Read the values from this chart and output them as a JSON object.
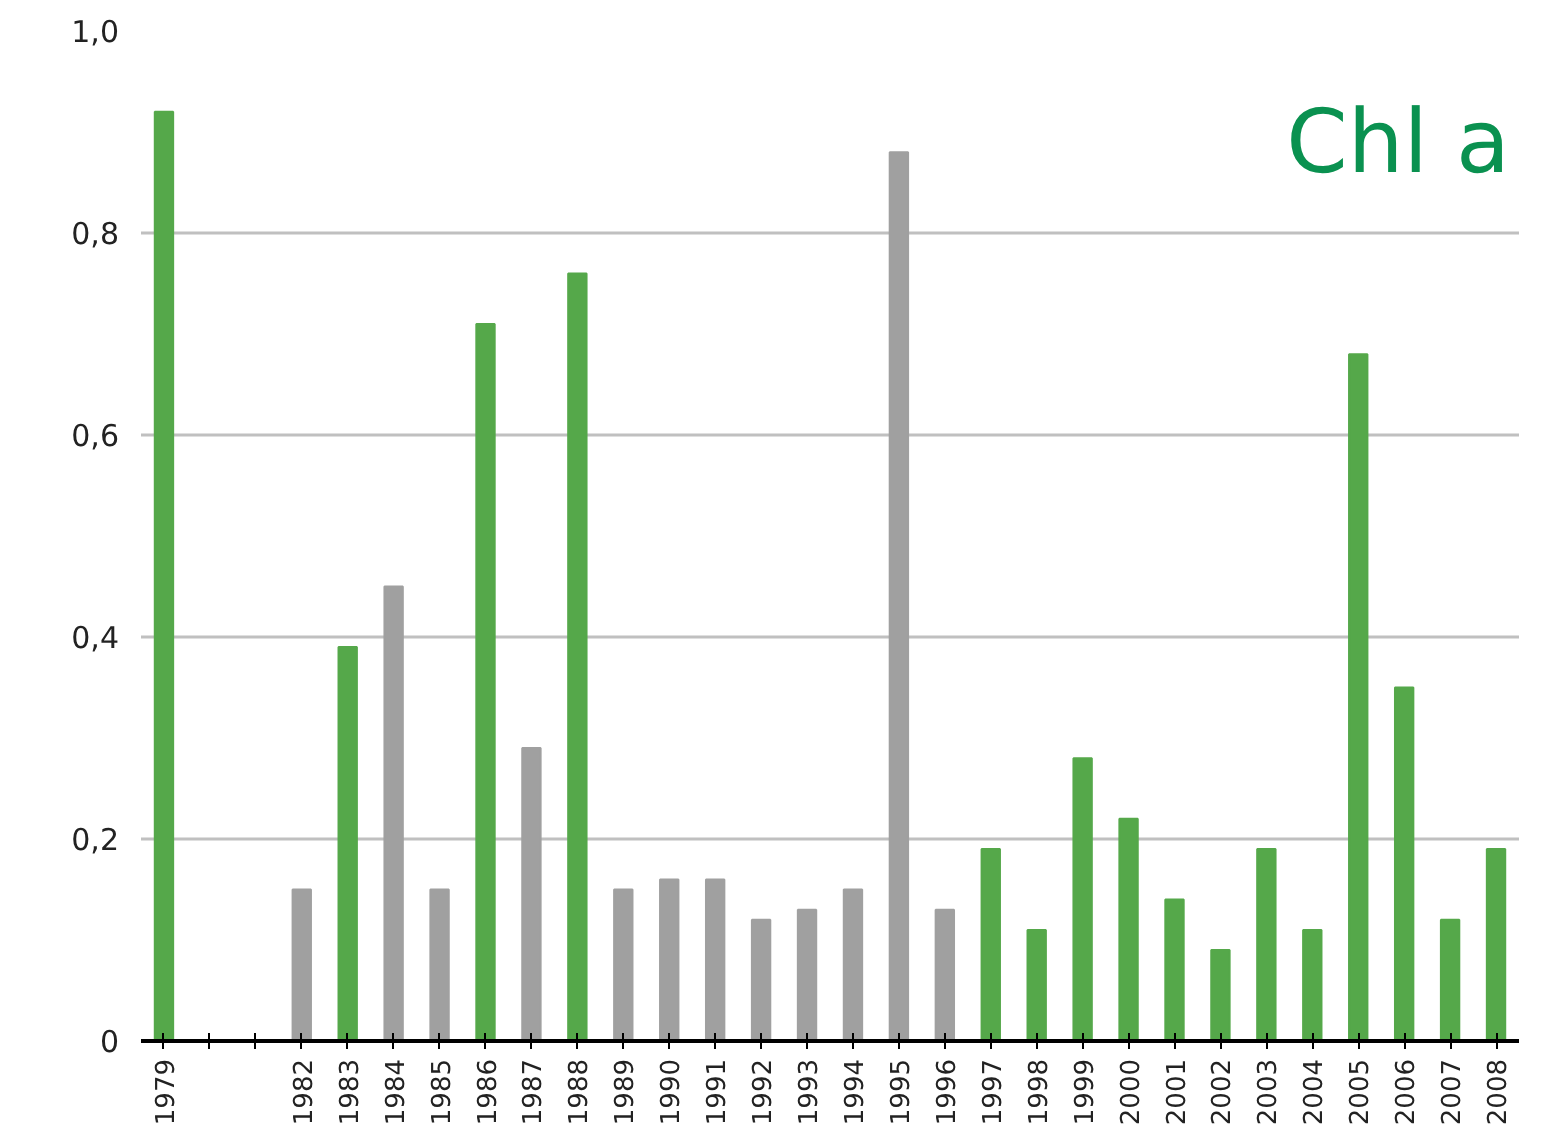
{
  "chart_data": {
    "type": "bar",
    "title": "Chl a",
    "categories": [
      "1979",
      null,
      null,
      "1982",
      "1983",
      "1984",
      "1985",
      "1986",
      "1987",
      "1988",
      "1989",
      "1990",
      "1991",
      "1992",
      "1993",
      "1994",
      "1995",
      "1996",
      "1997",
      "1998",
      "1999",
      "2000",
      "2001",
      "2002",
      "2003",
      "2004",
      "2005",
      "2006",
      "2007",
      "2008"
    ],
    "values": [
      0.92,
      null,
      null,
      0.15,
      0.39,
      0.45,
      0.15,
      0.71,
      0.29,
      0.76,
      0.15,
      0.16,
      0.16,
      0.12,
      0.13,
      0.15,
      0.88,
      0.13,
      0.19,
      0.11,
      0.28,
      0.22,
      0.14,
      0.09,
      0.19,
      0.11,
      0.68,
      0.35,
      0.12,
      0.19
    ],
    "colors": [
      "#55a84a",
      "#55a84a",
      "#55a84a",
      "#a0a0a0",
      "#55a84a",
      "#a0a0a0",
      "#a0a0a0",
      "#55a84a",
      "#a0a0a0",
      "#55a84a",
      "#a0a0a0",
      "#a0a0a0",
      "#a0a0a0",
      "#a0a0a0",
      "#a0a0a0",
      "#a0a0a0",
      "#a0a0a0",
      "#a0a0a0",
      "#55a84a",
      "#55a84a",
      "#55a84a",
      "#55a84a",
      "#55a84a",
      "#55a84a",
      "#55a84a",
      "#55a84a",
      "#55a84a",
      "#55a84a",
      "#55a84a",
      "#55a84a"
    ],
    "ylim": [
      0,
      1.0
    ],
    "yticks": [
      {
        "value": 0,
        "label": "0"
      },
      {
        "value": 0.2,
        "label": "0,2"
      },
      {
        "value": 0.4,
        "label": "0,4"
      },
      {
        "value": 0.6,
        "label": "0,6"
      },
      {
        "value": 0.8,
        "label": "0,8"
      },
      {
        "value": 1.0,
        "label": "1,0"
      }
    ],
    "grid": "y"
  }
}
